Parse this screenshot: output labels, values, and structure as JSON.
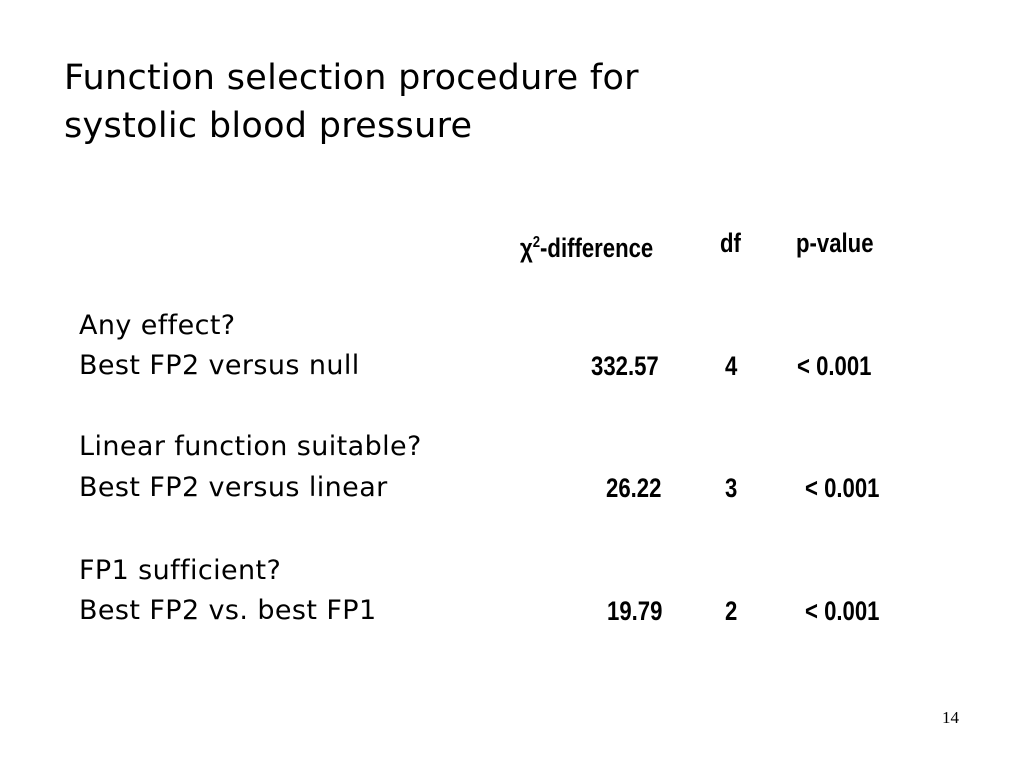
{
  "slide": {
    "title_line1": "Function selection procedure for",
    "title_line2": "systolic blood pressure",
    "page_number": "14"
  },
  "table": {
    "headers": {
      "chi_prefix": "χ",
      "chi_sup": "2",
      "chi_suffix": "-difference",
      "df": "df",
      "p": "p-value"
    },
    "groups": [
      {
        "question": "Any effect?",
        "comparison": "Best FP2 versus null",
        "chi2": "332.57",
        "df": "4",
        "p": "< 0.001"
      },
      {
        "question": "Linear function suitable?",
        "comparison": "Best FP2 versus linear",
        "chi2": "26.22",
        "df": "3",
        "p": "< 0.001"
      },
      {
        "question": "FP1 sufficient?",
        "comparison": "Best FP2 vs. best FP1",
        "chi2": "19.79",
        "df": "2",
        "p": "< 0.001"
      }
    ]
  }
}
